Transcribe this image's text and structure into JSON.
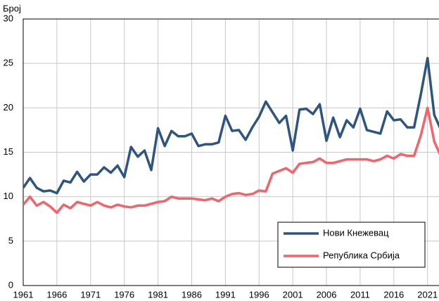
{
  "chart_data": {
    "type": "line",
    "y_label": "Број",
    "x": [
      1961,
      1962,
      1963,
      1964,
      1965,
      1966,
      1967,
      1968,
      1969,
      1970,
      1971,
      1972,
      1973,
      1974,
      1975,
      1976,
      1977,
      1978,
      1979,
      1980,
      1981,
      1982,
      1983,
      1984,
      1985,
      1986,
      1987,
      1988,
      1989,
      1990,
      1991,
      1992,
      1993,
      1994,
      1995,
      1996,
      1997,
      1998,
      1999,
      2000,
      2001,
      2002,
      2003,
      2004,
      2005,
      2006,
      2007,
      2008,
      2009,
      2010,
      2011,
      2012,
      2013,
      2014,
      2015,
      2016,
      2017,
      2018,
      2019,
      2020,
      2021,
      2022,
      2023
    ],
    "series": [
      {
        "name": "Нови Кнежевац",
        "color": "#2e5580",
        "values": [
          11.0,
          12.1,
          11.0,
          10.6,
          10.7,
          10.4,
          11.8,
          11.6,
          12.8,
          11.7,
          12.5,
          12.5,
          13.3,
          12.7,
          13.5,
          12.2,
          15.6,
          14.5,
          15.2,
          13.0,
          17.7,
          15.7,
          17.4,
          16.8,
          16.8,
          17.1,
          15.7,
          15.9,
          15.9,
          16.1,
          19.1,
          17.4,
          17.5,
          16.4,
          17.8,
          19.0,
          20.7,
          19.5,
          18.3,
          19.1,
          15.2,
          19.8,
          19.9,
          19.3,
          20.4,
          16.3,
          18.9,
          16.7,
          18.6,
          17.8,
          19.9,
          17.5,
          17.3,
          17.1,
          19.6,
          18.6,
          18.7,
          17.8,
          17.8,
          21.5,
          25.6,
          19.2,
          17.5
        ]
      },
      {
        "name": "Република Србија",
        "color": "#f0646a",
        "values": [
          9.1,
          10.0,
          9.0,
          9.4,
          8.9,
          8.2,
          9.1,
          8.7,
          9.4,
          9.2,
          9.0,
          9.4,
          9.0,
          8.8,
          9.1,
          8.9,
          8.8,
          9.0,
          9.0,
          9.2,
          9.4,
          9.5,
          10.0,
          9.8,
          9.8,
          9.8,
          9.7,
          9.6,
          9.8,
          9.5,
          10.0,
          10.3,
          10.4,
          10.2,
          10.3,
          10.7,
          10.6,
          12.6,
          12.9,
          13.2,
          12.7,
          13.7,
          13.8,
          13.9,
          14.3,
          13.8,
          13.8,
          14.0,
          14.2,
          14.2,
          14.2,
          14.2,
          14.0,
          14.2,
          14.6,
          14.3,
          14.8,
          14.6,
          14.6,
          16.9,
          20.0,
          16.2,
          14.5
        ]
      }
    ],
    "xlim": [
      1961,
      2022.7
    ],
    "xticks": [
      1961,
      1966,
      1971,
      1976,
      1981,
      1986,
      1991,
      1996,
      2001,
      2006,
      2011,
      2016,
      2021
    ],
    "ylim": [
      0,
      30
    ],
    "yticks": [
      0,
      5,
      10,
      15,
      20,
      25,
      30
    ],
    "grid": true,
    "legend": "lower right"
  }
}
